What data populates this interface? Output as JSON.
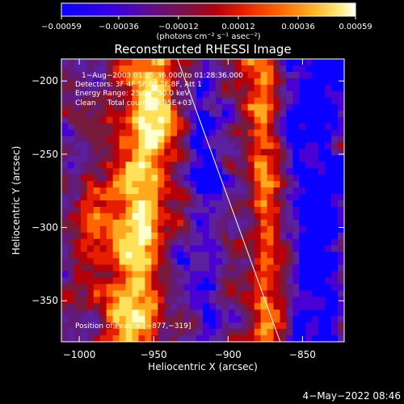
{
  "chart_data": {
    "type": "heatmap",
    "title": "Reconstructed RHESSI Image",
    "xlabel": "Heliocentric X (arcsec)",
    "ylabel": "Heliocentric Y (arcsec)",
    "xlim": [
      -1012,
      -822
    ],
    "ylim": [
      -378,
      -185
    ],
    "xticks": [
      -1000,
      -950,
      -900,
      -850
    ],
    "xtick_labels": [
      "−1000",
      "−950",
      "−900",
      "−850"
    ],
    "yticks": [
      -200,
      -250,
      -300,
      -350
    ],
    "ytick_labels": [
      "−200",
      "−250",
      "−300",
      "−350"
    ],
    "colorbar": {
      "range": [
        -0.00059,
        0.00059
      ],
      "ticks": [
        -0.00059,
        -0.00036,
        -0.00012,
        0.00012,
        0.00036,
        0.00059
      ],
      "tick_labels": [
        "−0.00059",
        "−0.00036",
        "−0.00012",
        "0.00012",
        "0.00036",
        "0.00059"
      ],
      "unit_label": "(photons cm⁻² s⁻¹ asec⁻²)"
    },
    "annotations": [
      "1−Aug−2003 01:25:36.000 to 01:28:36.000",
      "Detectors: 3F 4F 5F 6F 7F 8F, Att 1",
      "Energy Range: 25.0 − 50.0 keV",
      "Clean     Total counts: 4.95E+03"
    ],
    "peak_label": "Position of Peak = [−877,−319]",
    "limb_line": {
      "x": [
        -934,
        -865
      ],
      "y": [
        -185,
        -378
      ]
    },
    "colors": {
      "background": "#000000",
      "text": "#ffffff",
      "colormap": [
        "#0a00ff",
        "#4a00d2",
        "#5a20a0",
        "#641a78",
        "#781a3c",
        "#b4000a",
        "#e61e00",
        "#ff6400",
        "#ffaa1e",
        "#ffe15a",
        "#ffffcd"
      ]
    }
  },
  "footer": {
    "timestamp": "4−May−2022 08:46"
  }
}
